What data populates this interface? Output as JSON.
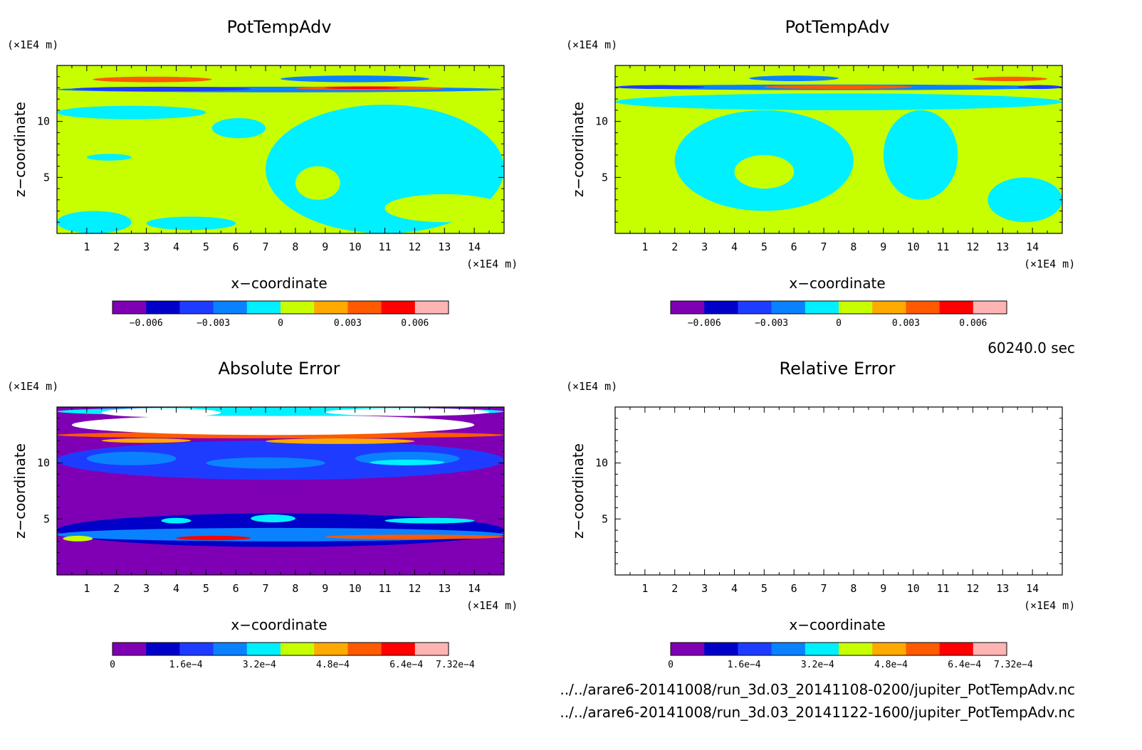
{
  "time_label": "60240.0 sec",
  "files": [
    "../../arare6-20141008/run_3d.03_20141108-0200/jupiter_PotTempAdv.nc",
    "../../arare6-20141008/run_3d.03_20141122-1600/jupiter_PotTempAdv.nc"
  ],
  "colors": {
    "levels_signed": [
      "#7f00b4",
      "#0000c8",
      "#1e3cff",
      "#0a82ff",
      "#00f0ff",
      "#c8ff00",
      "#ffaa00",
      "#ff5a00",
      "#ff0000",
      "#ffb4b4"
    ],
    "levels_error": [
      "#7f00b4",
      "#0000c8",
      "#1e3cff",
      "#0a82ff",
      "#00f0ff",
      "#c8ff00",
      "#ffaa00",
      "#ff5a00",
      "#ff0000",
      "#ffb4b4"
    ]
  },
  "chart_data": [
    {
      "type": "heatmap",
      "title": "PotTempAdv",
      "xlabel": "x−coordinate",
      "ylabel": "z−coordinate",
      "xunit": "(×1E4 m)",
      "yunit": "(×1E4 m)",
      "xlim": [
        0,
        15
      ],
      "ylim": [
        0,
        15
      ],
      "xticks": [
        "1",
        "2",
        "3",
        "4",
        "5",
        "6",
        "7",
        "8",
        "9",
        "10",
        "11",
        "12",
        "13",
        "14"
      ],
      "yticks": [
        "5",
        "10"
      ],
      "colorbar": {
        "ticks": [
          "−0.006",
          "−0.003",
          "0",
          "0.003",
          "0.006"
        ],
        "levels": [
          -0.0075,
          0.0075
        ]
      },
      "regions": [
        {
          "level": 5,
          "x": 0,
          "z": 0,
          "w": 15,
          "h": 15
        },
        {
          "level": 4,
          "x": 0,
          "z": 10.2,
          "w": 5,
          "h": 1.2
        },
        {
          "level": 4,
          "x": 7,
          "z": 0,
          "w": 8,
          "h": 11.5
        },
        {
          "level": 4,
          "x": 0,
          "z": 0,
          "w": 2.5,
          "h": 2
        },
        {
          "level": 4,
          "x": 3,
          "z": 0.3,
          "w": 3,
          "h": 1.2
        },
        {
          "level": 4,
          "x": 5.2,
          "z": 8.5,
          "w": 1.8,
          "h": 1.8
        },
        {
          "level": 4,
          "x": 1,
          "z": 6.5,
          "w": 1.5,
          "h": 0.6
        },
        {
          "level": 5,
          "x": 8,
          "z": 3,
          "w": 1.5,
          "h": 3
        },
        {
          "level": 5,
          "x": 11,
          "z": 1,
          "w": 4,
          "h": 2.5
        },
        {
          "level": 3,
          "x": 0,
          "z": 12.6,
          "w": 15,
          "h": 0.5
        },
        {
          "level": 2,
          "x": 0.5,
          "z": 12.7,
          "w": 6,
          "h": 0.4
        },
        {
          "level": 7,
          "x": 1.2,
          "z": 13.5,
          "w": 4,
          "h": 0.5
        },
        {
          "level": 3,
          "x": 7.5,
          "z": 13.5,
          "w": 5,
          "h": 0.6
        },
        {
          "level": 7,
          "x": 8,
          "z": 12.8,
          "w": 5,
          "h": 0.35
        },
        {
          "level": 8,
          "x": 9,
          "z": 12.9,
          "w": 2.5,
          "h": 0.2
        }
      ]
    },
    {
      "type": "heatmap",
      "title": "PotTempAdv",
      "xlabel": "x−coordinate",
      "ylabel": "z−coordinate",
      "xunit": "(×1E4 m)",
      "yunit": "(×1E4 m)",
      "xlim": [
        0,
        15
      ],
      "ylim": [
        0,
        15
      ],
      "xticks": [
        "1",
        "2",
        "3",
        "4",
        "5",
        "6",
        "7",
        "8",
        "9",
        "10",
        "11",
        "12",
        "13",
        "14"
      ],
      "yticks": [
        "5",
        "10"
      ],
      "colorbar": {
        "ticks": [
          "−0.006",
          "−0.003",
          "0",
          "0.003",
          "0.006"
        ],
        "levels": [
          -0.0075,
          0.0075
        ]
      },
      "regions": [
        {
          "level": 5,
          "x": 0,
          "z": 0,
          "w": 15,
          "h": 15
        },
        {
          "level": 4,
          "x": 2,
          "z": 2,
          "w": 6,
          "h": 9
        },
        {
          "level": 4,
          "x": 9,
          "z": 3,
          "w": 2.5,
          "h": 8
        },
        {
          "level": 4,
          "x": 0,
          "z": 11,
          "w": 15,
          "h": 1.5
        },
        {
          "level": 4,
          "x": 12.5,
          "z": 1,
          "w": 2.5,
          "h": 4
        },
        {
          "level": 5,
          "x": 4,
          "z": 4,
          "w": 2,
          "h": 3
        },
        {
          "level": 5,
          "x": 0,
          "z": 5.5,
          "w": 2,
          "h": 1.5
        },
        {
          "level": 3,
          "x": 0,
          "z": 12.8,
          "w": 15,
          "h": 0.5
        },
        {
          "level": 2,
          "x": 0,
          "z": 12.9,
          "w": 3,
          "h": 0.35
        },
        {
          "level": 2,
          "x": 13.5,
          "z": 12.9,
          "w": 1.5,
          "h": 0.35
        },
        {
          "level": 7,
          "x": 5,
          "z": 12.9,
          "w": 5,
          "h": 0.35
        },
        {
          "level": 3,
          "x": 4.5,
          "z": 13.6,
          "w": 3,
          "h": 0.5
        },
        {
          "level": 7,
          "x": 12,
          "z": 13.6,
          "w": 2.5,
          "h": 0.4
        }
      ]
    },
    {
      "type": "heatmap",
      "title": "Absolute Error",
      "xlabel": "x−coordinate",
      "ylabel": "z−coordinate",
      "xunit": "(×1E4 m)",
      "yunit": "(×1E4 m)",
      "xlim": [
        0,
        15
      ],
      "ylim": [
        0,
        15
      ],
      "xticks": [
        "1",
        "2",
        "3",
        "4",
        "5",
        "6",
        "7",
        "8",
        "9",
        "10",
        "11",
        "12",
        "13",
        "14"
      ],
      "yticks": [
        "5",
        "10"
      ],
      "colorbar": {
        "ticks": [
          "0",
          "1.6e−4",
          "3.2e−4",
          "4.8e−4",
          "6.4e−4",
          "7.32e−4"
        ],
        "levels": [
          0,
          0.000732
        ]
      },
      "regions": [
        {
          "level": 0,
          "x": 0,
          "z": 0,
          "w": 15,
          "h": 15
        },
        {
          "level": 2,
          "x": 0,
          "z": 8.5,
          "w": 15,
          "h": 3.5
        },
        {
          "level": 1,
          "x": 0,
          "z": 2.5,
          "w": 15,
          "h": 3
        },
        {
          "level": 3,
          "x": 1,
          "z": 9.8,
          "w": 3,
          "h": 1.2
        },
        {
          "level": 3,
          "x": 5,
          "z": 9.5,
          "w": 4,
          "h": 1
        },
        {
          "level": 3,
          "x": 10,
          "z": 9.8,
          "w": 3.5,
          "h": 1.2
        },
        {
          "level": 4,
          "x": 10.5,
          "z": 9.8,
          "w": 2.5,
          "h": 0.5
        },
        {
          "level": 3,
          "x": 0,
          "z": 3,
          "w": 15,
          "h": 1.2
        },
        {
          "level": 4,
          "x": 3.5,
          "z": 4.6,
          "w": 1,
          "h": 0.5
        },
        {
          "level": 4,
          "x": 6.5,
          "z": 4.7,
          "w": 1.5,
          "h": 0.7
        },
        {
          "level": 4,
          "x": 11,
          "z": 4.6,
          "w": 3,
          "h": 0.5
        },
        {
          "level": 5,
          "x": 0.2,
          "z": 3,
          "w": 1,
          "h": 0.5
        },
        {
          "level": 8,
          "x": 4,
          "z": 3.1,
          "w": 2.5,
          "h": 0.4
        },
        {
          "level": 7,
          "x": 9,
          "z": 3.2,
          "w": 6,
          "h": 0.4
        },
        {
          "level": 7,
          "x": 0,
          "z": 12.2,
          "w": 15,
          "h": 0.6
        },
        {
          "level": 6,
          "x": 1.5,
          "z": 11.8,
          "w": 3,
          "h": 0.4
        },
        {
          "level": 6,
          "x": 7,
          "z": 11.7,
          "w": 5,
          "h": 0.5
        },
        {
          "level": 10,
          "x": 0.5,
          "z": 12.5,
          "w": 13.5,
          "h": 1.8
        },
        {
          "level": 4,
          "x": 0,
          "z": 14.2,
          "w": 15,
          "h": 0.8
        },
        {
          "level": 10,
          "x": 1.5,
          "z": 14.1,
          "w": 4,
          "h": 0.8
        },
        {
          "level": 10,
          "x": 9,
          "z": 14.2,
          "w": 5.5,
          "h": 0.7
        }
      ]
    },
    {
      "type": "heatmap",
      "title": "Relative Error",
      "xlabel": "x−coordinate",
      "ylabel": "z−coordinate",
      "xunit": "(×1E4 m)",
      "yunit": "(×1E4 m)",
      "xlim": [
        0,
        15
      ],
      "ylim": [
        0,
        15
      ],
      "xticks": [
        "1",
        "2",
        "3",
        "4",
        "5",
        "6",
        "7",
        "8",
        "9",
        "10",
        "11",
        "12",
        "13",
        "14"
      ],
      "yticks": [
        "5",
        "10"
      ],
      "colorbar": {
        "ticks": [
          "0",
          "1.6e−4",
          "3.2e−4",
          "4.8e−4",
          "6.4e−4",
          "7.32e−4"
        ],
        "levels": [
          0,
          0.000732
        ]
      },
      "regions": []
    }
  ]
}
